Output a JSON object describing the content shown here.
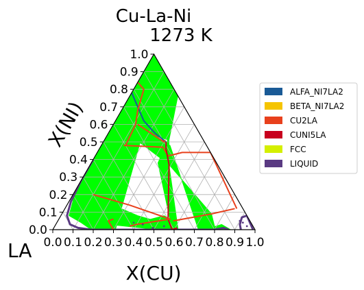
{
  "chart_data": {
    "type": "ternary-phase-diagram",
    "title": "Cu-La-Ni",
    "subtitle": "1273  K",
    "xlabel": "X(CU)",
    "ylabel": "X(NI)",
    "corner_label": "LA",
    "x_ticks": [
      "0.0",
      "0.1",
      "0.2",
      "0.3",
      "0.4",
      "0.5",
      "0.6",
      "0.7",
      "0.8",
      "0.9",
      "1.0"
    ],
    "y_ticks": [
      "0.0",
      "0.1",
      "0.2",
      "0.3",
      "0.4",
      "0.5",
      "0.6",
      "0.7",
      "0.8",
      "0.9",
      "1.0"
    ],
    "grid": true,
    "legend_position": "right",
    "legend": [
      {
        "name": "ALFA_NI7LA2",
        "color": "#1a5a96"
      },
      {
        "name": "BETA_NI7LA2",
        "color": "#f5c400"
      },
      {
        "name": "CU2LA",
        "color": "#e8401c"
      },
      {
        "name": "CUNI5LA",
        "color": "#c8001e"
      },
      {
        "name": "FCC",
        "color": "#d4ef00"
      },
      {
        "name": "LIQUID",
        "color": "#5a3a82"
      }
    ],
    "tieline_color": "#00ff00",
    "twophase_regions": [
      {
        "name": "upper-left",
        "pts": [
          [
            0.0,
            0.84
          ],
          [
            0.0,
            0.77
          ],
          [
            0.0,
            0.6
          ],
          [
            0.0,
            0.48
          ],
          [
            0.0,
            0.41
          ],
          [
            0.0,
            0.23
          ],
          [
            0.04,
            0.08
          ],
          [
            0.12,
            0.04
          ],
          [
            0.19,
            0.0
          ],
          [
            0.29,
            0.0
          ],
          [
            0.31,
            0.0
          ],
          [
            0.15,
            0.63
          ],
          [
            0.08,
            0.8
          ],
          [
            0.06,
            0.82
          ]
        ]
      },
      {
        "name": "top-right",
        "pts": [
          [
            0.0,
            0.84
          ],
          [
            0.06,
            0.82
          ],
          [
            0.11,
            0.66
          ],
          [
            0.04,
            0.59
          ],
          [
            0.32,
            0.51
          ],
          [
            0.16,
            1.0
          ],
          [
            0.0,
            1.0
          ]
        ]
      },
      {
        "name": "right-band",
        "pts": [
          [
            0.13,
            0.59
          ],
          [
            0.16,
            0.51
          ],
          [
            0.39,
            0.37
          ],
          [
            0.74,
            0.09
          ],
          [
            0.79,
            0.02
          ],
          [
            0.83,
            0.0
          ],
          [
            0.72,
            0.0
          ],
          [
            0.34,
            0.48
          ]
        ]
      },
      {
        "name": "center-wedge",
        "pts": [
          [
            0.31,
            0.53
          ],
          [
            0.39,
            0.37
          ],
          [
            0.62,
            0.0
          ],
          [
            0.59,
            0.0
          ],
          [
            0.33,
            0.38
          ]
        ]
      },
      {
        "name": "lower-left",
        "pts": [
          [
            0.05,
            0.21
          ],
          [
            0.38,
            0.08
          ],
          [
            0.59,
            0.02
          ],
          [
            0.52,
            0.0
          ],
          [
            0.17,
            0.04
          ],
          [
            0.06,
            0.12
          ],
          [
            0.04,
            0.08
          ]
        ]
      },
      {
        "name": "lower-mid",
        "pts": [
          [
            0.37,
            0.03
          ],
          [
            0.59,
            0.0
          ],
          [
            0.55,
            0.06
          ],
          [
            0.51,
            0.08
          ]
        ]
      },
      {
        "name": "bottom-right",
        "pts": [
          [
            0.75,
            0.0
          ],
          [
            0.88,
            0.0
          ],
          [
            0.82,
            0.03
          ]
        ]
      }
    ],
    "phase_boundaries": [
      {
        "phase": "LIQUID",
        "pts": [
          [
            0.0,
            0.4
          ],
          [
            0.0,
            0.28
          ],
          [
            0.01,
            0.16
          ],
          [
            0.03,
            0.08
          ],
          [
            0.07,
            0.03
          ],
          [
            0.12,
            0.01
          ],
          [
            0.19,
            0.0
          ],
          [
            0.3,
            0.0
          ],
          [
            0.4,
            0.0
          ],
          [
            0.48,
            0.0
          ],
          [
            0.55,
            0.0
          ],
          [
            0.64,
            0.0
          ],
          [
            0.72,
            0.0
          ],
          [
            0.8,
            0.0
          ],
          [
            0.84,
            0.01
          ],
          [
            0.87,
            0.0
          ]
        ]
      },
      {
        "phase": "LIQUID",
        "pts": [
          [
            0.93,
            0.0
          ],
          [
            0.91,
            0.03
          ],
          [
            0.9,
            0.07
          ],
          [
            0.92,
            0.08
          ],
          [
            0.99,
            0.0
          ]
        ]
      },
      {
        "phase": "ALFA_NI7LA2",
        "pts": [
          [
            0.0,
            0.78
          ],
          [
            0.14,
            0.62
          ],
          [
            0.23,
            0.55
          ],
          [
            0.31,
            0.5
          ]
        ]
      },
      {
        "phase": "CU2LA",
        "pts": [
          [
            0.0,
            0.84
          ],
          [
            0.05,
            0.8
          ],
          [
            0.08,
            0.68
          ],
          [
            0.11,
            0.6
          ],
          [
            0.12,
            0.48
          ]
        ]
      },
      {
        "phase": "CU2LA",
        "pts": [
          [
            0.12,
            0.6
          ],
          [
            0.3,
            0.5
          ],
          [
            0.3,
            0.51
          ]
        ]
      },
      {
        "phase": "CU2LA",
        "pts": [
          [
            0.11,
            0.48
          ],
          [
            0.31,
            0.47
          ],
          [
            0.36,
            0.42
          ],
          [
            0.42,
            0.44
          ],
          [
            0.56,
            0.44
          ],
          [
            0.85,
            0.12
          ]
        ]
      },
      {
        "phase": "CUNI5LA",
        "pts": [
          [
            0.31,
            0.5
          ],
          [
            0.33,
            0.46
          ],
          [
            0.39,
            0.37
          ],
          [
            0.54,
            0.06
          ],
          [
            0.59,
            0.0
          ],
          [
            0.61,
            0.01
          ]
        ]
      },
      {
        "phase": "CU2LA",
        "pts": [
          [
            0.1,
            0.2
          ],
          [
            0.31,
            0.14
          ],
          [
            0.55,
            0.06
          ],
          [
            0.4,
            0.03
          ],
          [
            0.37,
            0.02
          ]
        ]
      },
      {
        "phase": "CU2LA",
        "pts": [
          [
            0.84,
            0.12
          ],
          [
            0.74,
            0.09
          ],
          [
            0.57,
            0.05
          ]
        ]
      },
      {
        "phase": "CU2LA",
        "pts": [
          [
            0.3,
            0.0
          ],
          [
            0.25,
            0.05
          ],
          [
            0.27,
            0.06
          ]
        ]
      }
    ],
    "scatter_points": [
      [
        0.38,
        0.04
      ],
      [
        0.43,
        0.03
      ],
      [
        0.49,
        0.01
      ],
      [
        0.54,
        0.02
      ],
      [
        0.9,
        0.05
      ],
      [
        0.92,
        0.04
      ],
      [
        0.95,
        0.02
      ]
    ]
  }
}
